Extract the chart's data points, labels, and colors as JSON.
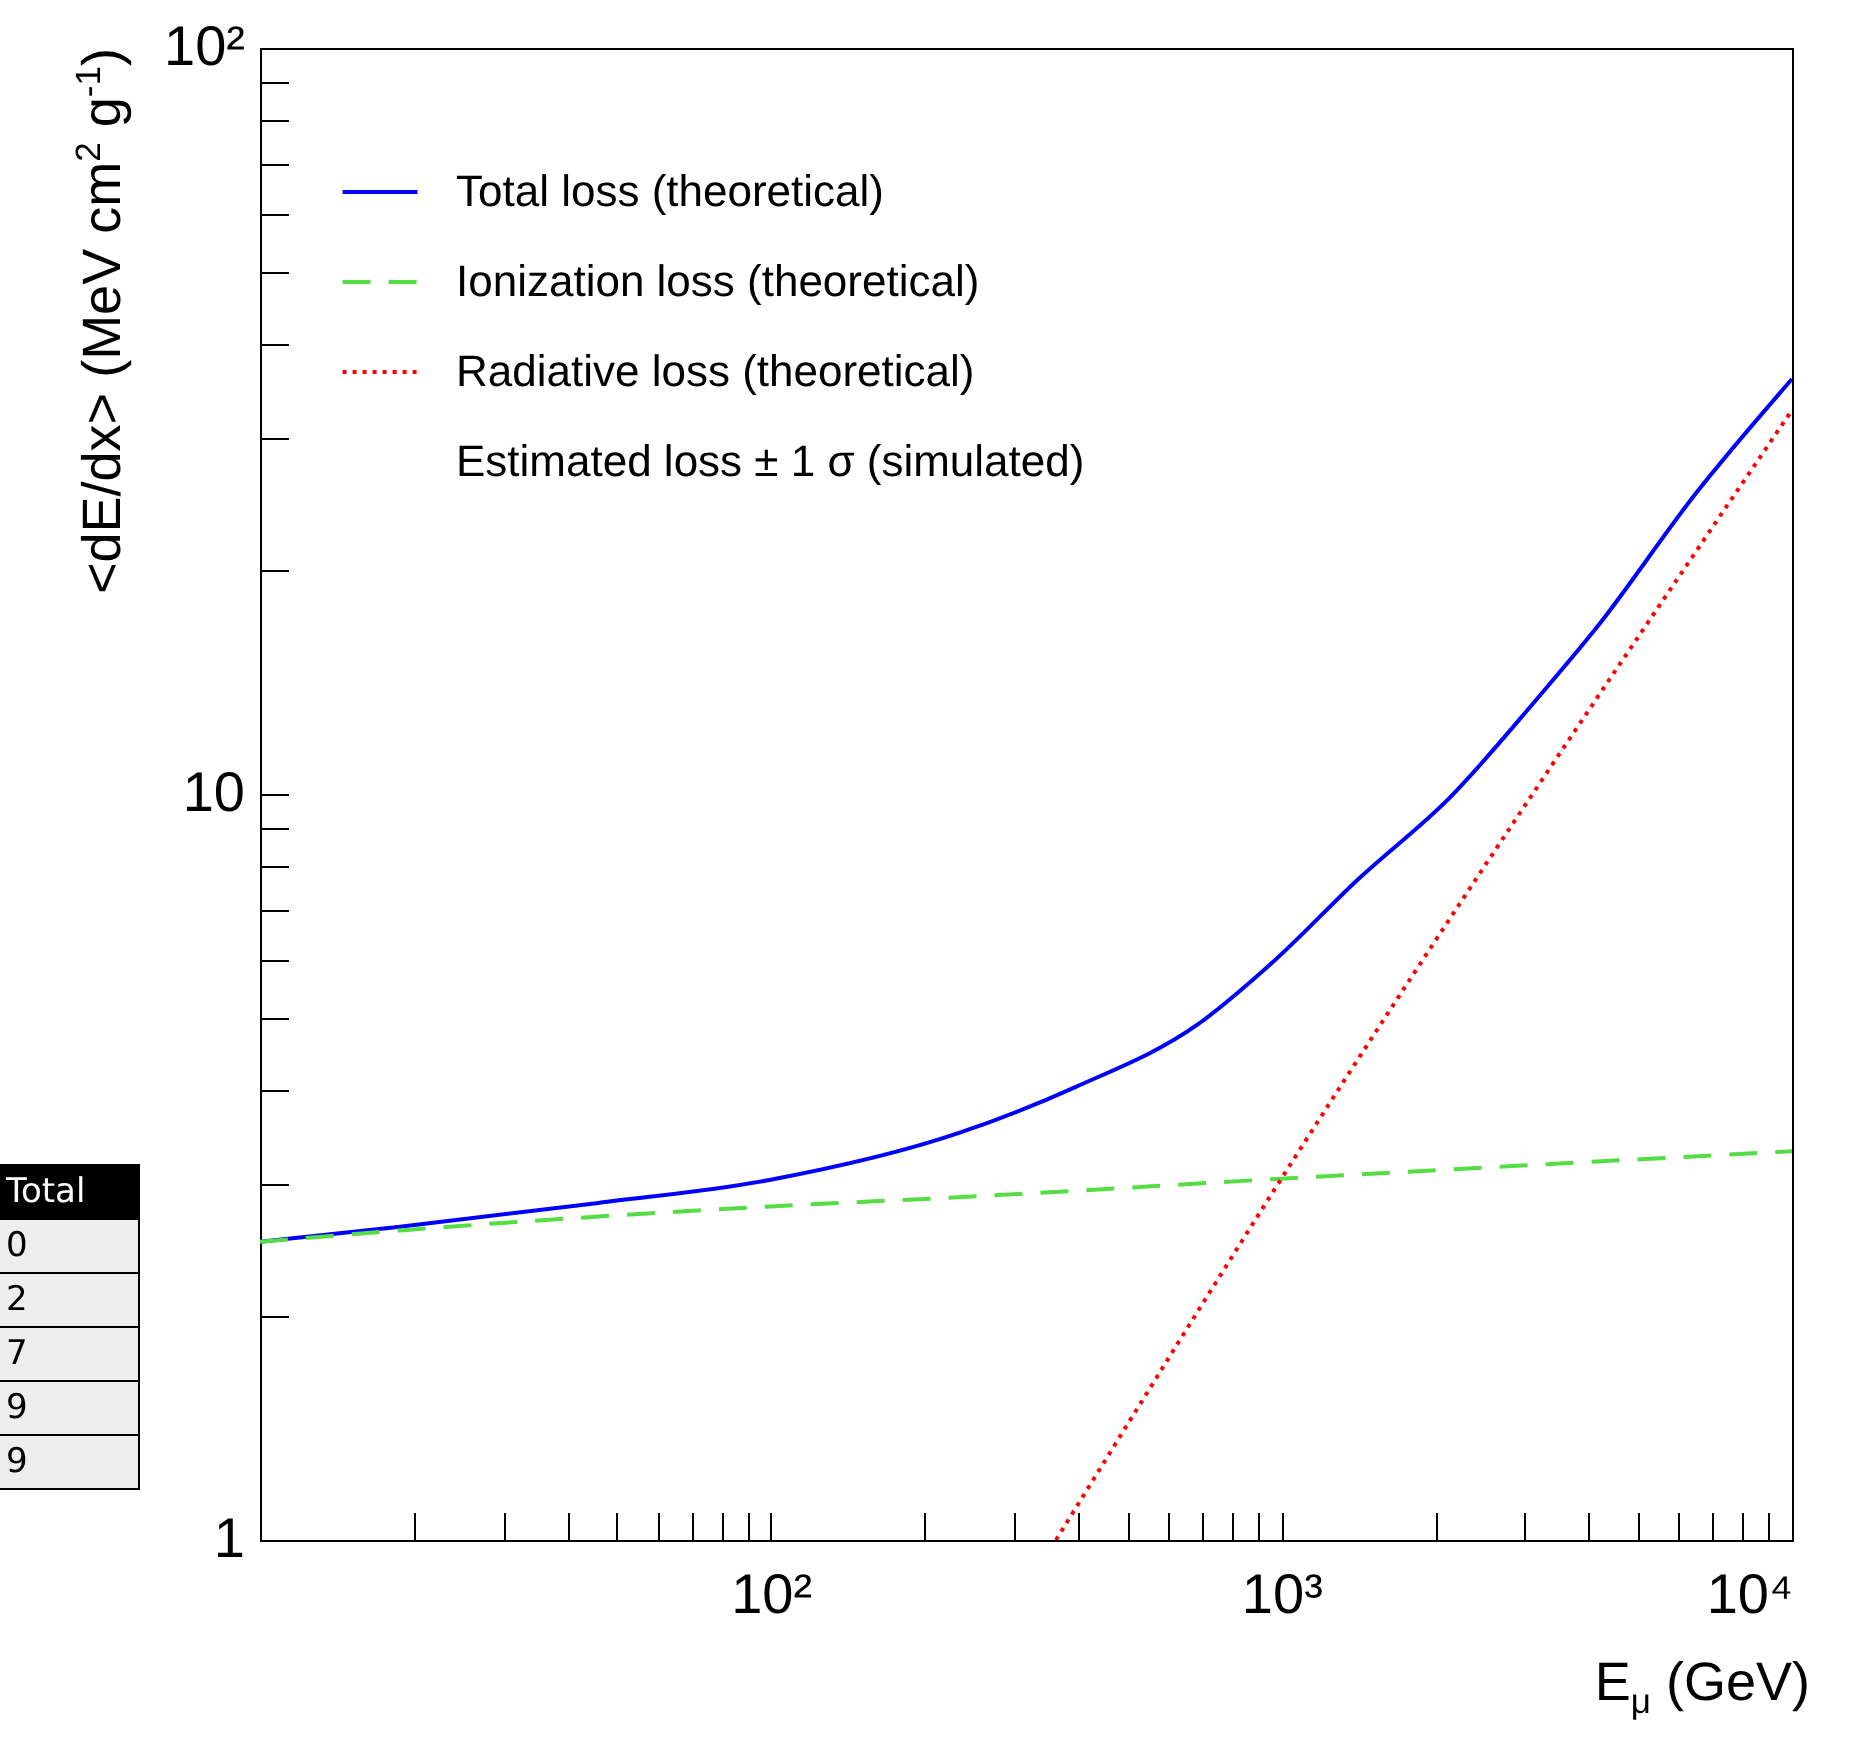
{
  "chart_data": {
    "type": "line",
    "xlabel": "E$_{μ}$ (GeV)",
    "ylabel": "<dE/dx> (MeV cm$^{2}$ g$^{-1}$)",
    "log": "xy",
    "grid": false,
    "legend": "top left",
    "xlim": [
      10,
      10000
    ],
    "xticks": [
      {
        "value": 10,
        "label": null
      },
      {
        "value": 20,
        "label": null
      },
      {
        "value": 30,
        "label": null
      },
      {
        "value": 40,
        "label": null
      },
      {
        "value": 50,
        "label": null
      },
      {
        "value": 60,
        "label": null
      },
      {
        "value": 70,
        "label": null
      },
      {
        "value": 80,
        "label": null
      },
      {
        "value": 90,
        "label": null
      },
      {
        "value": 100,
        "label": "10²"
      },
      {
        "value": 200,
        "label": null
      },
      {
        "value": 300,
        "label": null
      },
      {
        "value": 400,
        "label": null
      },
      {
        "value": 500,
        "label": null
      },
      {
        "value": 600,
        "label": null
      },
      {
        "value": 700,
        "label": null
      },
      {
        "value": 800,
        "label": null
      },
      {
        "value": 900,
        "label": null
      },
      {
        "value": 1000,
        "label": "10³"
      },
      {
        "value": 2000,
        "label": null
      },
      {
        "value": 3000,
        "label": null
      },
      {
        "value": 4000,
        "label": null
      },
      {
        "value": 5000,
        "label": null
      },
      {
        "value": 6000,
        "label": null
      },
      {
        "value": 7000,
        "label": null
      },
      {
        "value": 8000,
        "label": null
      },
      {
        "value": 9000,
        "label": null
      },
      {
        "value": 10000,
        "label": "10⁴"
      }
    ],
    "ylim": [
      1,
      100
    ],
    "yticks": [
      1,
      {
        "value": 2,
        "label": null
      },
      {
        "value": 3,
        "label": null
      },
      {
        "value": 4,
        "label": null
      },
      {
        "value": 5,
        "label": null
      },
      {
        "value": 6,
        "label": null
      },
      {
        "value": 7,
        "label": null
      },
      {
        "value": 8,
        "label": null
      },
      {
        "value": 9,
        "label": null
      },
      10,
      {
        "value": 20,
        "label": null
      },
      {
        "value": 30,
        "label": null
      },
      {
        "value": 40,
        "label": null
      },
      {
        "value": 50,
        "label": null
      },
      {
        "value": 60,
        "label": null
      },
      {
        "value": 70,
        "label": null
      },
      {
        "value": 80,
        "label": null
      },
      {
        "value": 90,
        "label": null
      },
      {
        "value": 100,
        "label": "10²"
      }
    ],
    "series": [
      {
        "name": "Total loss (theoretical)",
        "color": "#0000ff",
        "line_style": "solid",
        "x": [
          10,
          18.8,
          46,
          100,
          233,
          396,
          686,
          957,
          1409,
          2147,
          3163,
          4140,
          6485,
          10000
        ],
        "values": [
          2.51,
          2.63,
          2.83,
          3.04,
          3.51,
          4.05,
          4.91,
          5.93,
          7.67,
          9.92,
          13.4,
          16.7,
          25.3,
          36.0
        ]
      },
      {
        "name": "Ionization loss (theoretical)",
        "color": "#55dd44",
        "line_style": "dashed",
        "x": [
          10,
          18.8,
          100,
          233,
          1000,
          10000
        ],
        "values": [
          2.51,
          2.6,
          2.8,
          2.88,
          3.05,
          3.32
        ]
      },
      {
        "name": "Radiative loss (theoretical)",
        "color": "#ff0000",
        "line_style": "dotted",
        "x": [
          362,
          1000,
          10000
        ],
        "values": [
          1,
          3.05,
          32.7
        ]
      },
      {
        "name": "Estimated loss ± 1 σ (simulated)"
      }
    ],
    "annotations": [
      "Total",
      "0",
      "2",
      "7",
      "9",
      "9"
    ]
  }
}
